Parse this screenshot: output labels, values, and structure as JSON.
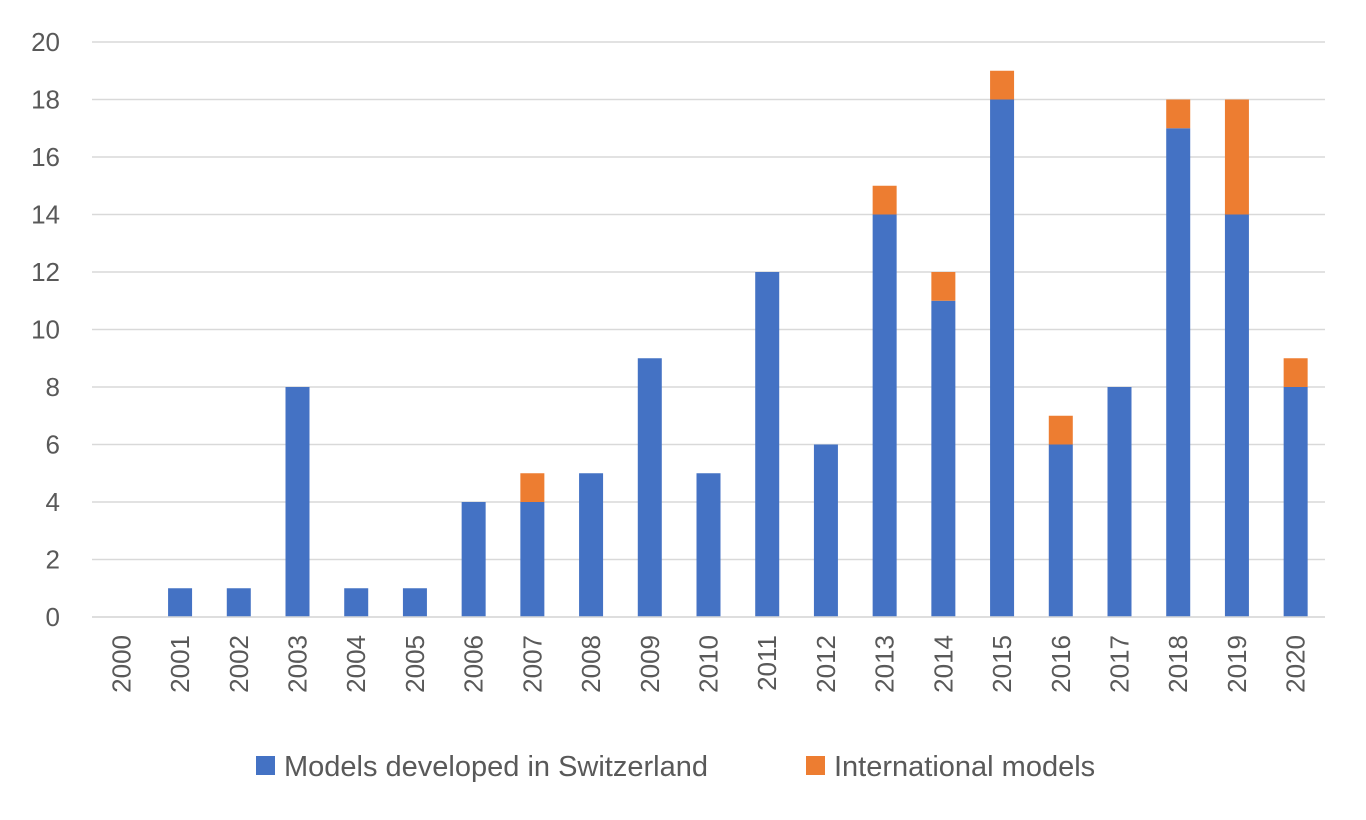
{
  "chart_data": {
    "type": "bar",
    "stacked": true,
    "categories": [
      "2000",
      "2001",
      "2002",
      "2003",
      "2004",
      "2005",
      "2006",
      "2007",
      "2008",
      "2009",
      "2010",
      "2011",
      "2012",
      "2013",
      "2014",
      "2015",
      "2016",
      "2017",
      "2018",
      "2019",
      "2020"
    ],
    "series": [
      {
        "name": "Models developed in Switzerland",
        "color": "#4472C4",
        "values": [
          0,
          1,
          1,
          8,
          1,
          1,
          4,
          4,
          5,
          9,
          5,
          12,
          6,
          14,
          11,
          18,
          6,
          8,
          17,
          14,
          8
        ]
      },
      {
        "name": "International models",
        "color": "#ED7D31",
        "values": [
          0,
          0,
          0,
          0,
          0,
          0,
          0,
          1,
          0,
          0,
          0,
          0,
          0,
          1,
          1,
          1,
          1,
          0,
          1,
          4,
          1
        ]
      }
    ],
    "ylim": [
      0,
      20
    ],
    "yticks": [
      "0",
      "2",
      "4",
      "6",
      "8",
      "10",
      "12",
      "14",
      "16",
      "18",
      "20"
    ],
    "grid": true,
    "legend_position": "bottom",
    "gridline_color": "#D9D9D9",
    "text_color": "#595959"
  }
}
